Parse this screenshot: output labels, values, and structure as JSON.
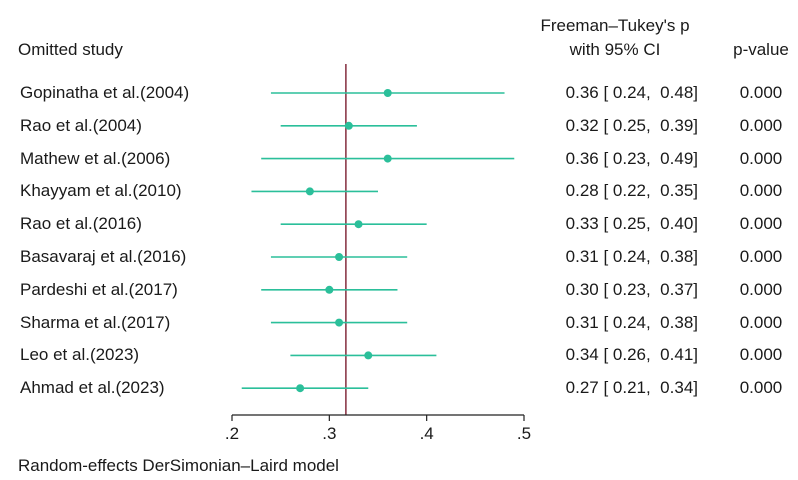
{
  "header": {
    "omitted_study": "Omitted study",
    "ci_line1": "Freeman–Tukey's p",
    "ci_line2": "with 95% CI",
    "pvalue": "p-value"
  },
  "footer": "Random-effects DerSimonian–Laird model",
  "chart_data": {
    "type": "forest",
    "xlim": [
      0.2,
      0.5
    ],
    "xticks": [
      0.2,
      0.3,
      0.4,
      0.5
    ],
    "xtick_labels": [
      ".2",
      ".3",
      ".4",
      ".5"
    ],
    "reference_line": 0.317,
    "colors": {
      "marker": "#2bbf9a",
      "reference": "#8c3a4a",
      "axis": "#222222"
    },
    "studies": [
      {
        "label": "Gopinatha et al.(2004)",
        "est": 0.36,
        "lo": 0.24,
        "hi": 0.48,
        "ci_text": "0.36 [ 0.24,  0.48]",
        "p": "0.000"
      },
      {
        "label": "Rao et al.(2004)",
        "est": 0.32,
        "lo": 0.25,
        "hi": 0.39,
        "ci_text": "0.32 [ 0.25,  0.39]",
        "p": "0.000"
      },
      {
        "label": "Mathew et al.(2006)",
        "est": 0.36,
        "lo": 0.23,
        "hi": 0.49,
        "ci_text": "0.36 [ 0.23,  0.49]",
        "p": "0.000"
      },
      {
        "label": "Khayyam et al.(2010)",
        "est": 0.28,
        "lo": 0.22,
        "hi": 0.35,
        "ci_text": "0.28 [ 0.22,  0.35]",
        "p": "0.000"
      },
      {
        "label": "Rao et al.(2016)",
        "est": 0.33,
        "lo": 0.25,
        "hi": 0.4,
        "ci_text": "0.33 [ 0.25,  0.40]",
        "p": "0.000"
      },
      {
        "label": "Basavaraj et al.(2016)",
        "est": 0.31,
        "lo": 0.24,
        "hi": 0.38,
        "ci_text": "0.31 [ 0.24,  0.38]",
        "p": "0.000"
      },
      {
        "label": "Pardeshi et al.(2017)",
        "est": 0.3,
        "lo": 0.23,
        "hi": 0.37,
        "ci_text": "0.30 [ 0.23,  0.37]",
        "p": "0.000"
      },
      {
        "label": "Sharma et al.(2017)",
        "est": 0.31,
        "lo": 0.24,
        "hi": 0.38,
        "ci_text": "0.31 [ 0.24,  0.38]",
        "p": "0.000"
      },
      {
        "label": "Leo et al.(2023)",
        "est": 0.34,
        "lo": 0.26,
        "hi": 0.41,
        "ci_text": "0.34 [ 0.26,  0.41]",
        "p": "0.000"
      },
      {
        "label": "Ahmad et al.(2023)",
        "est": 0.27,
        "lo": 0.21,
        "hi": 0.34,
        "ci_text": "0.27 [ 0.21,  0.34]",
        "p": "0.000"
      }
    ]
  }
}
